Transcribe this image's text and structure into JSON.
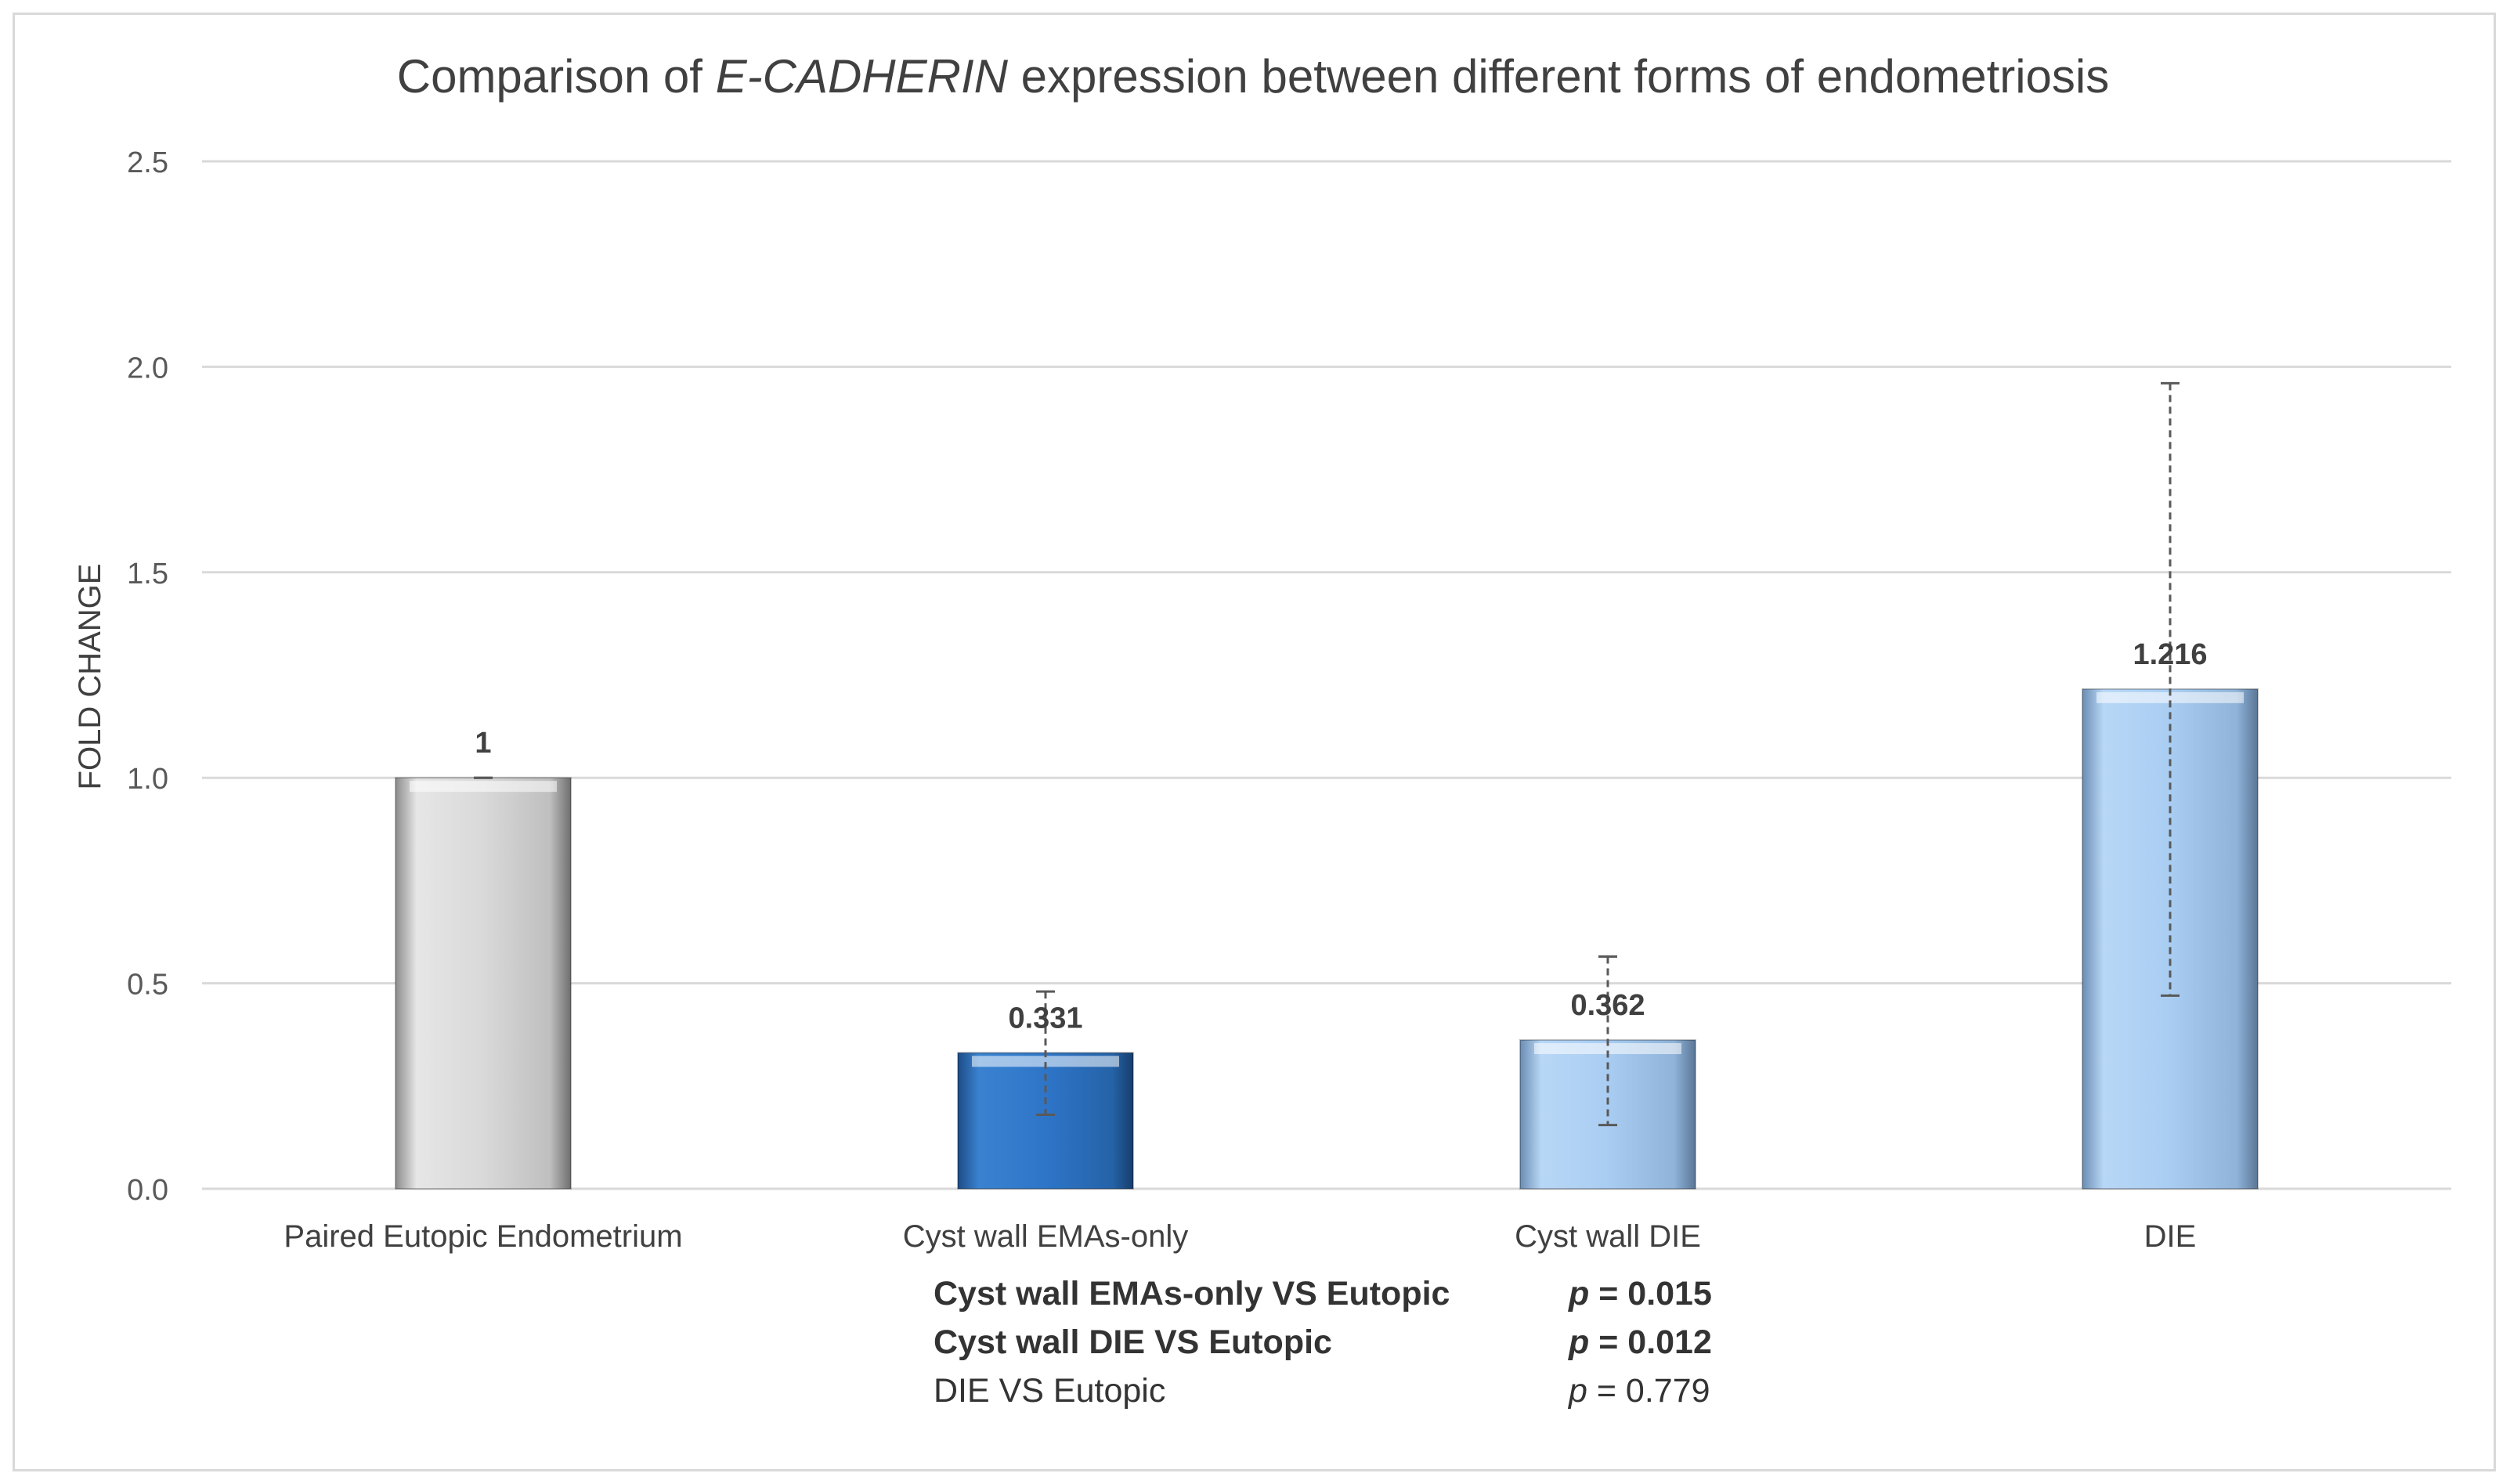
{
  "chart_data": {
    "type": "bar",
    "title": {
      "prefix": "Comparison of ",
      "italic": "E-CADHERIN",
      "suffix": " expression between different forms of endometriosis"
    },
    "xlabel": "",
    "ylabel": "FOLD CHANGE",
    "ylim": [
      0,
      2.5
    ],
    "yticks": [
      "0.0",
      "0.5",
      "1.0",
      "1.5",
      "2.0",
      "2.5"
    ],
    "grid": true,
    "categories": [
      "Paired Eutopic Endometrium",
      "Cyst wall EMAs-only",
      "Cyst wall DIE",
      "DIE"
    ],
    "values": [
      1,
      0.331,
      0.362,
      1.216
    ],
    "value_labels": [
      "1",
      "0.331",
      "0.362",
      "1.216"
    ],
    "error_low": [
      1.0,
      0.18,
      0.155,
      0.47
    ],
    "error_high": [
      1.0,
      0.48,
      0.565,
      1.96
    ],
    "colors": [
      "#d9d9d9",
      "#2e75c8",
      "#a9cdf2",
      "#a9cdf2"
    ],
    "annotations": [
      {
        "label": "Cyst wall EMAs-only VS Eutopic",
        "p_prefix": "p",
        "p_value": " = 0.015",
        "bold": true
      },
      {
        "label": "Cyst wall DIE VS Eutopic",
        "p_prefix": "p",
        "p_value": " = 0.012",
        "bold": true
      },
      {
        "label": "DIE VS Eutopic",
        "p_prefix": "p",
        "p_value": " = 0.779",
        "bold": false
      }
    ]
  }
}
